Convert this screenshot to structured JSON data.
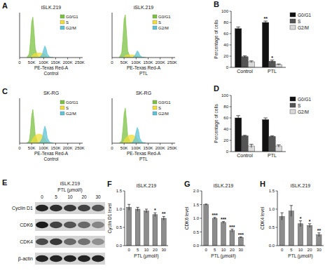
{
  "chart_data": [
    {
      "type": "area",
      "panel": "A",
      "title": "iSLK.219",
      "xlabel": "PE-Texas Red-A",
      "subtitle": "Control",
      "x": [
        30000,
        40000,
        45000,
        50000,
        55000,
        60000,
        65000,
        75000,
        85000,
        95000,
        100000,
        105000,
        110000,
        115000,
        125000,
        140000
      ],
      "series": [
        {
          "name": "G0/G1",
          "color": "#7cc242",
          "values": [
            0,
            8,
            35,
            78,
            90,
            58,
            20,
            2,
            0,
            0,
            0,
            0,
            0,
            0,
            0,
            0
          ]
        },
        {
          "name": "S",
          "color": "#f0de3a",
          "values": [
            0,
            0,
            0,
            3,
            6,
            8,
            9,
            10,
            10,
            9,
            8,
            6,
            3,
            1,
            0,
            0
          ]
        },
        {
          "name": "G2/M",
          "color": "#5fc3d6",
          "values": [
            0,
            0,
            0,
            0,
            0,
            0,
            0,
            0,
            1,
            8,
            18,
            26,
            20,
            8,
            1,
            0
          ]
        }
      ],
      "xlim": [
        0,
        262144
      ],
      "xticks": [
        0,
        {
          "value": 50000,
          "label": "50K"
        },
        {
          "value": 100000,
          "label": "100K"
        },
        {
          "value": 150000,
          "label": "150K"
        },
        {
          "value": 200000,
          "label": "200K"
        },
        {
          "value": 250000,
          "label": "250K"
        }
      ],
      "ylim": [
        0,
        100
      ],
      "tick_labels": "x",
      "legend": "upper right"
    },
    {
      "type": "area",
      "title": "iSLK.219",
      "xlabel": "PE-Texas Red-A",
      "subtitle": "PTL",
      "x": [
        30000,
        40000,
        45000,
        50000,
        55000,
        60000,
        65000,
        75000,
        85000,
        95000,
        100000,
        105000,
        110000,
        115000,
        125000,
        140000
      ],
      "series": [
        {
          "name": "G0/G1",
          "color": "#7cc242",
          "values": [
            0,
            10,
            40,
            85,
            95,
            55,
            15,
            1,
            0,
            0,
            0,
            0,
            0,
            0,
            0,
            0
          ]
        },
        {
          "name": "S",
          "color": "#f0de3a",
          "values": [
            0,
            0,
            0,
            2,
            4,
            5,
            6,
            6,
            6,
            5,
            4,
            3,
            2,
            1,
            0,
            0
          ]
        },
        {
          "name": "G2/M",
          "color": "#5fc3d6",
          "values": [
            0,
            0,
            0,
            0,
            0,
            0,
            0,
            0,
            0,
            4,
            10,
            15,
            12,
            5,
            1,
            0
          ]
        }
      ],
      "xlim": [
        0,
        262144
      ],
      "xticks": [
        0,
        {
          "value": 50000,
          "label": "50K"
        },
        {
          "value": 100000,
          "label": "100K"
        },
        {
          "value": 150000,
          "label": "150K"
        },
        {
          "value": 200000,
          "label": "200K"
        },
        {
          "value": 250000,
          "label": "250K"
        }
      ],
      "ylim": [
        0,
        100
      ],
      "tick_labels": "x",
      "legend": "upper right"
    },
    {
      "type": "bar",
      "panel": "B",
      "ylabel": "Percentage of cells",
      "categories": [
        "Control",
        "PTL"
      ],
      "series": [
        {
          "name": "G0/G1",
          "color": "#111111",
          "values": [
            69,
            80
          ],
          "errors": [
            3,
            2.5
          ],
          "significance": [
            null,
            "**"
          ]
        },
        {
          "name": "S",
          "color": "#555555",
          "values": [
            19,
            11
          ],
          "errors": [
            1.5,
            2
          ],
          "significance": [
            null,
            "*"
          ]
        },
        {
          "name": "G2/M",
          "color": "#d9d9d9",
          "values": [
            10,
            5
          ],
          "errors": [
            1.5,
            1
          ],
          "significance": [
            null,
            null
          ]
        }
      ],
      "ylim": [
        0,
        100
      ],
      "yticks": [
        0,
        20,
        40,
        60,
        80,
        100
      ],
      "legend": "right"
    },
    {
      "type": "area",
      "panel": "C",
      "title": "SK-RG",
      "xlabel": "PE-Texas Red-A",
      "subtitle": "Control",
      "x": [
        30000,
        40000,
        45000,
        50000,
        55000,
        60000,
        65000,
        75000,
        85000,
        95000,
        100000,
        105000,
        110000,
        115000,
        125000,
        140000
      ],
      "series": [
        {
          "name": "G0/G1",
          "color": "#7cc242",
          "values": [
            0,
            5,
            25,
            60,
            75,
            50,
            18,
            2,
            0,
            0,
            0,
            0,
            0,
            0,
            0,
            0
          ]
        },
        {
          "name": "S",
          "color": "#f0de3a",
          "values": [
            0,
            0,
            0,
            5,
            10,
            14,
            17,
            20,
            20,
            18,
            15,
            10,
            5,
            2,
            0,
            0
          ]
        },
        {
          "name": "G2/M",
          "color": "#5fc3d6",
          "values": [
            0,
            0,
            0,
            0,
            0,
            0,
            0,
            0,
            2,
            12,
            28,
            38,
            30,
            12,
            2,
            0
          ]
        }
      ],
      "xlim": [
        0,
        262144
      ],
      "xticks": [
        0,
        {
          "value": 50000,
          "label": "50K"
        },
        {
          "value": 100000,
          "label": "100K"
        },
        {
          "value": 150000,
          "label": "150K"
        },
        {
          "value": 200000,
          "label": "200K"
        },
        {
          "value": 250000,
          "label": "250K"
        }
      ],
      "ylim": [
        0,
        100
      ],
      "tick_labels": "x",
      "legend": "upper right"
    },
    {
      "type": "area",
      "title": "SK-RG",
      "xlabel": "PE-Texas Red-A",
      "subtitle": "PTL",
      "x": [
        30000,
        40000,
        45000,
        50000,
        55000,
        60000,
        65000,
        75000,
        85000,
        95000,
        100000,
        105000,
        110000,
        115000,
        125000,
        140000
      ],
      "series": [
        {
          "name": "G0/G1",
          "color": "#7cc242",
          "values": [
            0,
            5,
            28,
            65,
            78,
            50,
            16,
            2,
            0,
            0,
            0,
            0,
            0,
            0,
            0,
            0
          ]
        },
        {
          "name": "S",
          "color": "#f0de3a",
          "values": [
            0,
            0,
            0,
            5,
            10,
            13,
            16,
            18,
            18,
            16,
            14,
            9,
            5,
            2,
            0,
            0
          ]
        },
        {
          "name": "G2/M",
          "color": "#5fc3d6",
          "values": [
            0,
            0,
            0,
            0,
            0,
            0,
            0,
            0,
            2,
            11,
            26,
            35,
            28,
            11,
            2,
            0
          ]
        }
      ],
      "xlim": [
        0,
        262144
      ],
      "xticks": [
        0,
        {
          "value": 50000,
          "label": "50K"
        },
        {
          "value": 100000,
          "label": "100K"
        },
        {
          "value": 150000,
          "label": "150K"
        },
        {
          "value": 200000,
          "label": "200K"
        },
        {
          "value": 250000,
          "label": "250K"
        }
      ],
      "ylim": [
        0,
        100
      ],
      "tick_labels": "x",
      "legend": "upper right"
    },
    {
      "type": "bar",
      "panel": "D",
      "ylabel": "Percentage of cells",
      "categories": [
        "Control",
        "PTL"
      ],
      "series": [
        {
          "name": "G0/G1",
          "color": "#111111",
          "values": [
            60,
            57
          ],
          "errors": [
            4,
            3
          ],
          "significance": [
            null,
            null
          ]
        },
        {
          "name": "S",
          "color": "#555555",
          "values": [
            28,
            27
          ],
          "errors": [
            1,
            1
          ],
          "significance": [
            null,
            null
          ]
        },
        {
          "name": "G2/M",
          "color": "#d9d9d9",
          "values": [
            10,
            10
          ],
          "errors": [
            3,
            2
          ],
          "significance": [
            null,
            null
          ]
        }
      ],
      "ylim": [
        0,
        100
      ],
      "yticks": [
        0,
        20,
        40,
        60,
        80,
        100
      ],
      "legend": "right"
    },
    {
      "type": "bar",
      "panel": "F",
      "title": "iSLK.219",
      "ylabel": "Cyclin D1 level",
      "xlabel": "PTL (μmol/l)",
      "categories": [
        "0",
        "5",
        "10",
        "20",
        "30"
      ],
      "values": [
        1.05,
        1.0,
        0.95,
        0.85,
        0.75
      ],
      "errors": [
        0.08,
        0.05,
        0.05,
        0.05,
        0.05
      ],
      "significance": [
        null,
        null,
        null,
        "*",
        "**"
      ],
      "color": "#8c8c8c",
      "ylim": [
        0,
        1.5
      ],
      "yticks": [
        {
          "value": 0,
          "label": "0.0"
        },
        0.5,
        {
          "value": 1,
          "label": "1.0"
        },
        1.5
      ]
    },
    {
      "type": "bar",
      "panel": "G",
      "title": "iSLK.219",
      "ylabel": "CDK6 level",
      "xlabel": "PTL (μmol/l)",
      "categories": [
        "0",
        "5",
        "10",
        "20",
        "30"
      ],
      "values": [
        1.5,
        1.0,
        0.85,
        0.55,
        0.3
      ],
      "errors": [
        0.02,
        0.03,
        0.03,
        0.05,
        0.02
      ],
      "significance": [
        null,
        "***",
        "***",
        "***",
        "***"
      ],
      "color": "#8c8c8c",
      "ylim": [
        0,
        2
      ],
      "yticks": [
        {
          "value": 0,
          "label": "0.0"
        },
        0.5,
        {
          "value": 1,
          "label": "1.0"
        },
        1.5,
        {
          "value": 2,
          "label": "2.0"
        }
      ]
    },
    {
      "type": "bar",
      "panel": "H",
      "title": "iSLK.219",
      "ylabel": "CDK4 level",
      "xlabel": "PTL (μmol/l)",
      "categories": [
        "0",
        "5",
        "10",
        "20",
        "30"
      ],
      "values": [
        0.8,
        0.95,
        0.6,
        0.55,
        0.3
      ],
      "errors": [
        0.1,
        0.15,
        0.08,
        0.05,
        0.05
      ],
      "significance": [
        null,
        null,
        "*",
        "*",
        "**"
      ],
      "color": "#8c8c8c",
      "ylim": [
        0,
        1.5
      ],
      "yticks": [
        {
          "value": 0,
          "label": "0.0"
        },
        0.5,
        {
          "value": 1,
          "label": "1.0"
        },
        1.5
      ]
    }
  ],
  "blot": {
    "panel": "E",
    "title": "iSLK.219",
    "xlabel": "PTL (μmol/l)",
    "lanes": [
      "0",
      "5",
      "10",
      "20",
      "30"
    ],
    "rows": [
      {
        "label": "Cyclin D1",
        "intensity": [
          0.9,
          0.85,
          0.8,
          0.75,
          0.65
        ]
      },
      {
        "label": "CDK6",
        "intensity": [
          0.95,
          0.75,
          0.65,
          0.55,
          0.4
        ]
      },
      {
        "label": "CDK4",
        "intensity": [
          0.7,
          0.8,
          0.55,
          0.5,
          0.35
        ]
      },
      {
        "label": "β-actin",
        "intensity": [
          0.9,
          0.9,
          0.9,
          0.9,
          0.9
        ]
      }
    ]
  }
}
